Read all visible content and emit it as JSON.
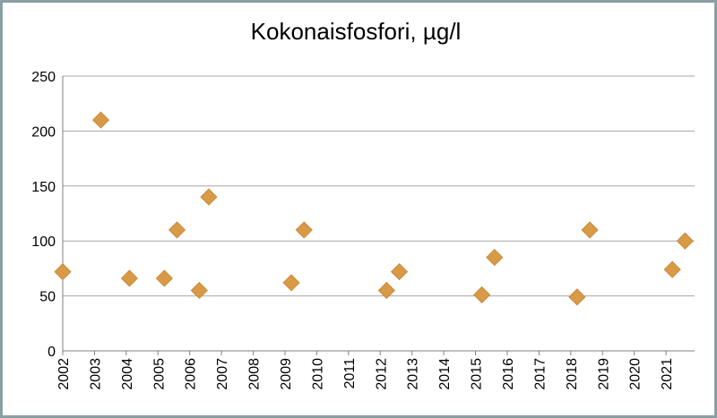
{
  "chart_data": {
    "type": "scatter",
    "title": "Kokonaisfosfori, µg/l",
    "xlabel": "",
    "ylabel": "",
    "ylim": [
      0,
      250
    ],
    "yticks": [
      0,
      50,
      100,
      150,
      200,
      250
    ],
    "xticks": [
      "2002",
      "2003",
      "2004",
      "2005",
      "2006",
      "2007",
      "2008",
      "2009",
      "2010",
      "2011",
      "2012",
      "2013",
      "2014",
      "2015",
      "2016",
      "2017",
      "2018",
      "2019",
      "2020",
      "2021"
    ],
    "xlim": [
      2002.0,
      2021.9
    ],
    "grid": true,
    "legend": "none",
    "marker": "diamond",
    "color": "#D89A46",
    "points": [
      {
        "x": 2002.0,
        "y": 72
      },
      {
        "x": 2003.2,
        "y": 210
      },
      {
        "x": 2004.1,
        "y": 66
      },
      {
        "x": 2005.2,
        "y": 66
      },
      {
        "x": 2005.6,
        "y": 110
      },
      {
        "x": 2006.3,
        "y": 55
      },
      {
        "x": 2006.6,
        "y": 140
      },
      {
        "x": 2009.2,
        "y": 62
      },
      {
        "x": 2009.6,
        "y": 110
      },
      {
        "x": 2012.2,
        "y": 55
      },
      {
        "x": 2012.6,
        "y": 72
      },
      {
        "x": 2015.2,
        "y": 51
      },
      {
        "x": 2015.6,
        "y": 85
      },
      {
        "x": 2018.2,
        "y": 49
      },
      {
        "x": 2018.6,
        "y": 110
      },
      {
        "x": 2021.2,
        "y": 74
      },
      {
        "x": 2021.6,
        "y": 100
      }
    ]
  }
}
